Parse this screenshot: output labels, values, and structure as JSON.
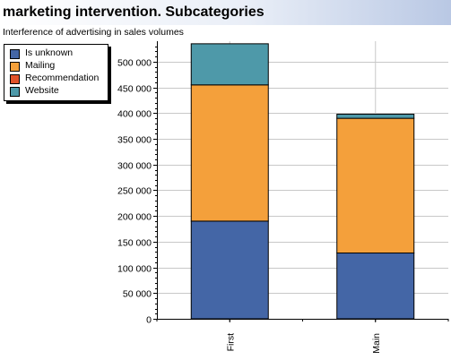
{
  "header": {
    "title": "marketing intervention. Subcategories",
    "subtitle": "Interference of advertising in sales volumes"
  },
  "legend": {
    "items": [
      {
        "label": "Is unknown",
        "color": "#4466a6"
      },
      {
        "label": "Mailing",
        "color": "#f4a03b"
      },
      {
        "label": "Recommendation",
        "color": "#e0522a"
      },
      {
        "label": "Website",
        "color": "#4e99a9"
      }
    ]
  },
  "chart_data": {
    "type": "bar",
    "stacked": true,
    "title": "marketing intervention. Subcategories",
    "subtitle": "Interference of advertising in sales volumes",
    "categories": [
      "First",
      "Main"
    ],
    "series": [
      {
        "name": "Is unknown",
        "values": [
          190000,
          128000
        ],
        "color": "#4466a6"
      },
      {
        "name": "Mailing",
        "values": [
          265000,
          262000
        ],
        "color": "#f4a03b"
      },
      {
        "name": "Recommendation",
        "values": [
          0,
          0
        ],
        "color": "#e0522a"
      },
      {
        "name": "Website",
        "values": [
          80000,
          8000
        ],
        "color": "#4e99a9"
      }
    ],
    "ylim": [
      0,
      540000
    ],
    "yticks": [
      0,
      50000,
      100000,
      150000,
      200000,
      250000,
      300000,
      350000,
      400000,
      450000,
      500000
    ],
    "ytick_labels": [
      "0",
      "50 000",
      "100 000",
      "150 000",
      "200 000",
      "250 000",
      "300 000",
      "350 000",
      "400 000",
      "450 000",
      "500 000"
    ],
    "grid": true,
    "legend_position": "top-left"
  }
}
